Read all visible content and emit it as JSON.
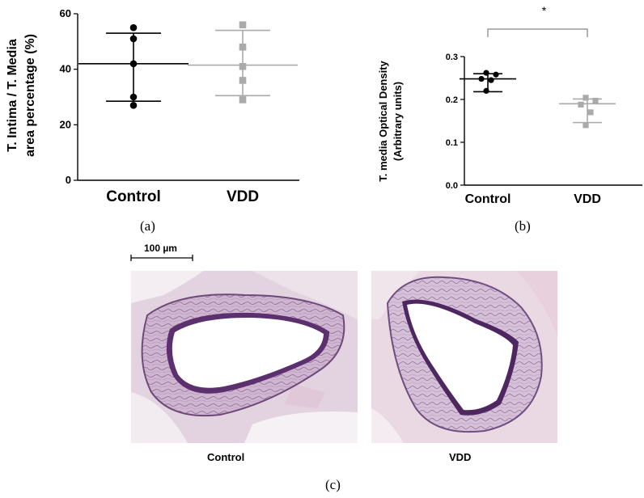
{
  "chart_data": [
    {
      "type": "scatter",
      "panel_label": "(a)",
      "ylabel": "T. Intima / T. Media area percentage (%)",
      "ylabel_lines": [
        "T. Intima / T. Media",
        "area percentage (%)"
      ],
      "categories": [
        "Control",
        "VDD"
      ],
      "ylim": [
        0,
        60
      ],
      "yticks": [
        "0",
        "20",
        "40",
        "60"
      ],
      "series": [
        {
          "category": "Control",
          "color": "#000000",
          "marker": "circle",
          "points": [
            55,
            51,
            42,
            30,
            27
          ],
          "mean": 42,
          "sd_low": 28.5,
          "sd_high": 53
        },
        {
          "category": "VDD",
          "color": "#aaaaaa",
          "marker": "square",
          "points": [
            56,
            48,
            41,
            36,
            29
          ],
          "mean": 41.5,
          "sd_low": 30.5,
          "sd_high": 54
        }
      ]
    },
    {
      "type": "scatter",
      "panel_label": "(b)",
      "ylabel": "T. media Optical Density (Arbitrary units)",
      "ylabel_lines": [
        "T. media Optical Density",
        "(Arbitrary units)"
      ],
      "categories": [
        "Control",
        "VDD"
      ],
      "ylim": [
        0,
        0.3
      ],
      "yticks": [
        "0.0",
        "0.1",
        "0.2",
        "0.3"
      ],
      "significance": "*",
      "series": [
        {
          "category": "Control",
          "color": "#000000",
          "marker": "circle",
          "points": [
            0.262,
            0.258,
            0.248,
            0.245,
            0.22
          ],
          "mean": 0.248,
          "sd_low": 0.218,
          "sd_high": 0.26
        },
        {
          "category": "VDD",
          "color": "#aaaaaa",
          "marker": "square",
          "points": [
            0.204,
            0.197,
            0.188,
            0.17,
            0.14
          ],
          "mean": 0.19,
          "sd_low": 0.146,
          "sd_high": 0.201
        }
      ]
    }
  ],
  "micrographs": {
    "scale_bar": "100 µm",
    "left_caption": "Control",
    "right_caption": "VDD",
    "panel_label": "(c)"
  }
}
